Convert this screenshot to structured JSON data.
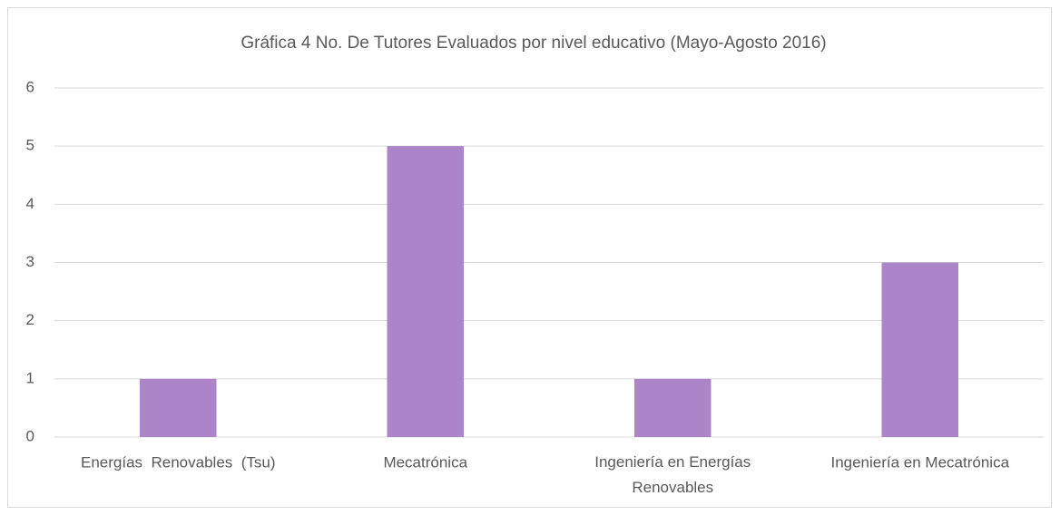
{
  "chart_data": {
    "type": "bar",
    "title": "Gráfica 4 No. De Tutores Evaluados por nivel educativo (Mayo-Agosto 2016)",
    "categories": [
      "Energías  Renovables  (Tsu)",
      "Mecatrónica",
      "Ingeniería en Energías Renovables",
      "Ingeniería en Mecatrónica"
    ],
    "values": [
      1,
      5,
      1,
      3
    ],
    "color": "#ab85c8",
    "ylim": [
      0,
      6
    ],
    "yticks": [
      0,
      1,
      2,
      3,
      4,
      5,
      6
    ],
    "grid": true
  }
}
